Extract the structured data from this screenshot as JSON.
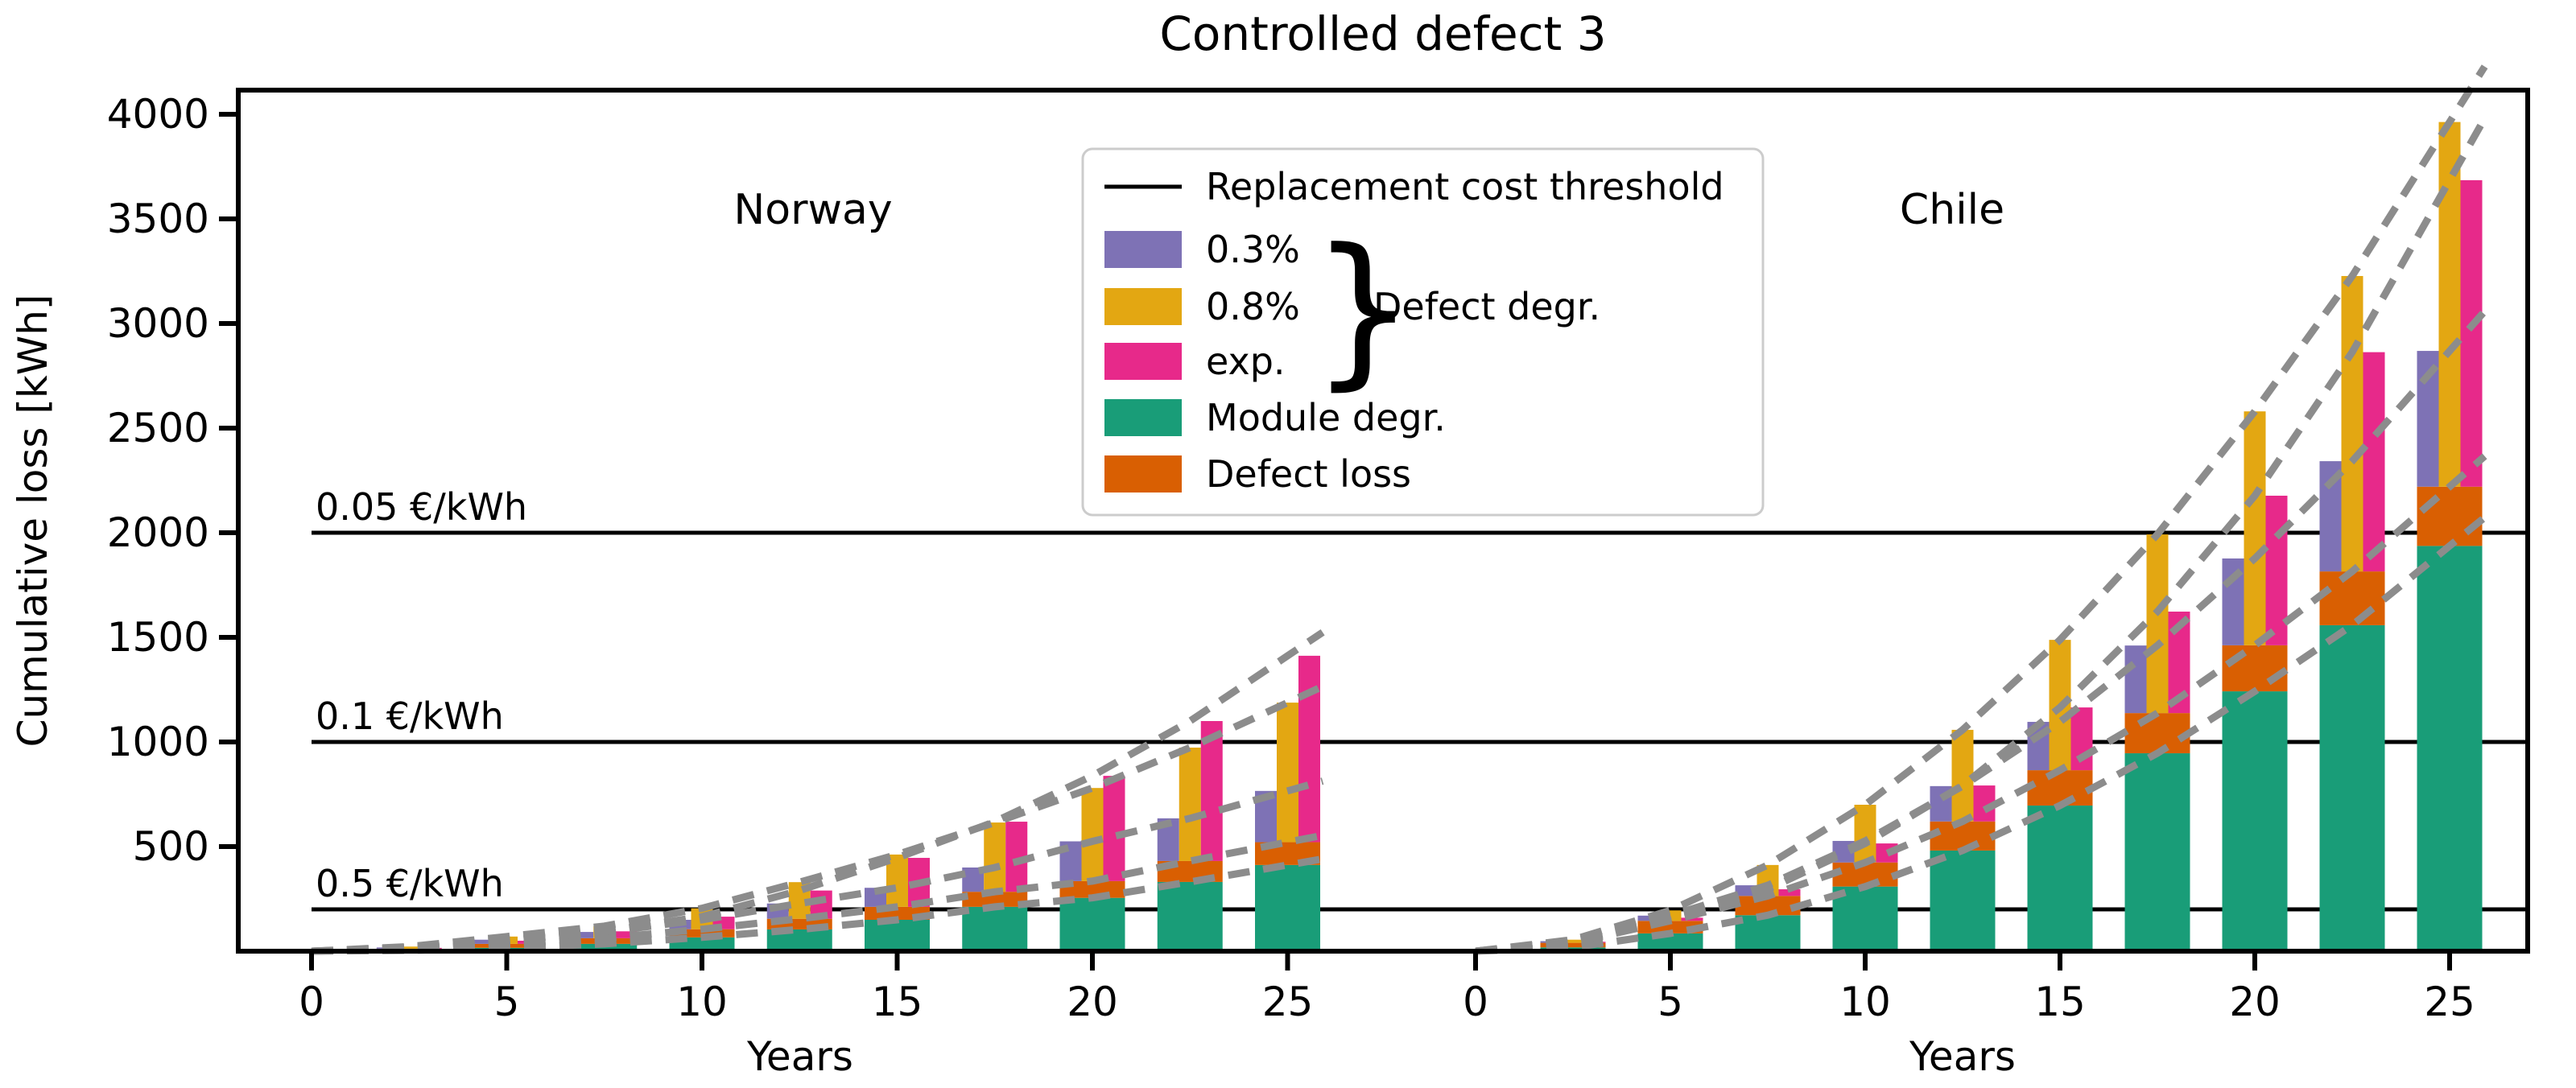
{
  "title": "Controlled defect 3",
  "legend": {
    "threshold": "Replacement cost threshold",
    "deg03": "0.3%",
    "deg08": "0.8%",
    "degexp": "exp.",
    "brace_glyph": "}",
    "group_label": "Defect degr.",
    "module": "Module degr.",
    "defect_loss": "Defect loss"
  },
  "colors": {
    "deg03": "#7e72b5",
    "deg08": "#e3a712",
    "degexp": "#e7298a",
    "module": "#199d78",
    "defect_loss": "#d95f02",
    "threshold_line": "#000000",
    "dashed_curve": "#8c8c8c",
    "legend_border": "#cccccc"
  },
  "chart_data": {
    "type": "bar",
    "title": "Controlled defect 3",
    "xlabel": "Years",
    "ylabel": "Cumulative loss [kWh]",
    "ylim": [
      0,
      4115
    ],
    "yticks": [
      500,
      1000,
      1500,
      2000,
      2500,
      3000,
      3500,
      4000
    ],
    "xticks": [
      0,
      5,
      10,
      15,
      20,
      25
    ],
    "grid": false,
    "legend_position": "upper center",
    "bar_group_years": [
      2.5,
      5,
      7.5,
      10,
      12.5,
      15,
      17.5,
      20,
      22.5,
      25
    ],
    "stack_order": [
      "module_degr",
      "defect_loss",
      "defect_degr_variant"
    ],
    "variant_order": [
      "deg03",
      "deg08",
      "degexp"
    ],
    "threshold_lines": [
      {
        "label": "0.05 €/kWh",
        "kwh": 2000
      },
      {
        "label": "0.1 €/kWh",
        "kwh": 1000
      },
      {
        "label": "0.5 €/kWh",
        "kwh": 200
      }
    ],
    "panels": [
      {
        "label": "Norway",
        "series": {
          "module_degr": [
            4,
            16,
            35,
            66,
            104,
            150,
            212,
            255,
            331,
            412
          ],
          "defect_loss": [
            8,
            19,
            27,
            39,
            51,
            62,
            72,
            80,
            100,
            109
          ],
          "deg03": [
            6,
            20,
            30,
            45,
            73,
            91,
            116,
            190,
            204,
            245
          ],
          "deg08": [
            10,
            35,
            58,
            100,
            175,
            250,
            331,
            445,
            542,
            667
          ],
          "degexp": [
            4,
            15,
            33,
            60,
            135,
            234,
            335,
            503,
            669,
            891
          ]
        }
      },
      {
        "label": "Chile",
        "series": {
          "module_degr": [
            18,
            85,
            172,
            309,
            481,
            696,
            946,
            1242,
            1558,
            1937
          ],
          "defect_loss": [
            22,
            60,
            92,
            115,
            139,
            169,
            192,
            220,
            257,
            283
          ],
          "deg03": [
            8,
            25,
            51,
            103,
            169,
            231,
            323,
            415,
            527,
            649
          ],
          "deg08": [
            15,
            50,
            148,
            276,
            438,
            623,
            854,
            1118,
            1412,
            1743
          ],
          "degexp": [
            5,
            15,
            32,
            91,
            172,
            300,
            485,
            715,
            1048,
            1465
          ]
        }
      }
    ]
  }
}
